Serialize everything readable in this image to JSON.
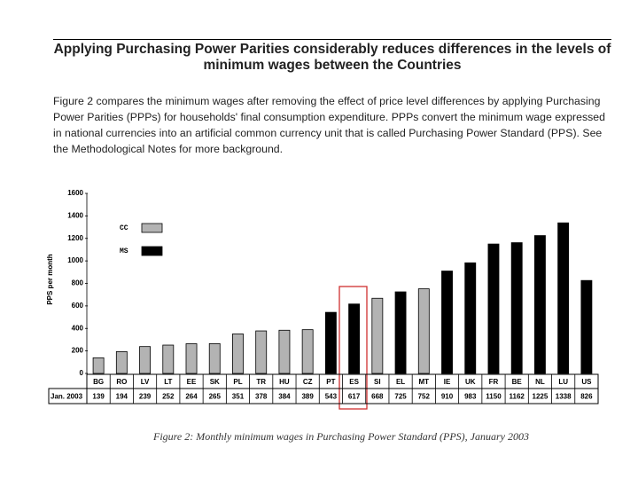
{
  "title": "Applying Purchasing Power Parities considerably reduces differences in the levels of minimum wages between the Countries",
  "paragraph": "Figure 2 compares the minimum wages after removing the effect of price level differences by applying Purchasing Power Parities (PPPs) for households' final consumption expenditure. PPPs convert the minimum wage expressed in national currencies into an artificial common currency unit that is called Purchasing Power Standard (PPS). See the Methodological Notes for more background.",
  "caption": "Figure 2: Monthly minimum wages in Purchasing Power Standard (PPS), January 2003",
  "chart_data": {
    "type": "bar",
    "y_label": "PPS per month",
    "row_label": "Jan. 2003",
    "categories": [
      "BG",
      "RO",
      "LV",
      "LT",
      "EE",
      "SK",
      "PL",
      "TR",
      "HU",
      "CZ",
      "PT",
      "ES",
      "SI",
      "EL",
      "MT",
      "IE",
      "UK",
      "FR",
      "BE",
      "NL",
      "LU",
      "US"
    ],
    "series": [
      {
        "name": "CC",
        "color": "#b3b3b3",
        "values": [
          139,
          194,
          239,
          252,
          264,
          265,
          351,
          378,
          384,
          389,
          null,
          null,
          668,
          null,
          752,
          null,
          null,
          null,
          null,
          null,
          null,
          null
        ]
      },
      {
        "name": "MS",
        "color": "#000000",
        "values": [
          null,
          null,
          null,
          null,
          null,
          null,
          null,
          null,
          null,
          null,
          543,
          617,
          null,
          725,
          null,
          910,
          983,
          1150,
          1162,
          1225,
          1338,
          826
        ]
      }
    ],
    "ylim": [
      0,
      1600
    ],
    "yticks": [
      0,
      200,
      400,
      600,
      800,
      1000,
      1200,
      1400,
      1600
    ],
    "legend": "upper left"
  }
}
